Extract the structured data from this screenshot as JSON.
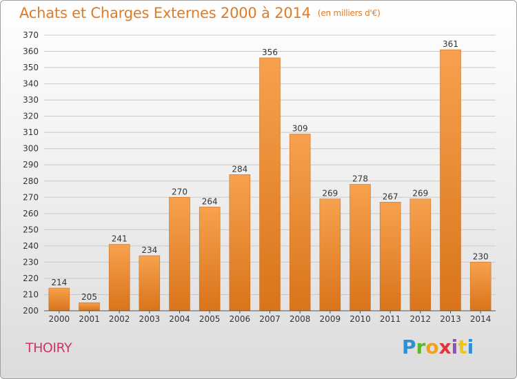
{
  "header": {
    "title": "Achats et Charges Externes 2000 à 2014",
    "unit": "(en milliers d'€)"
  },
  "footer": {
    "town": "THOIRY",
    "logo_text": "Proxiti"
  },
  "colors": {
    "title": "#e07b25",
    "town": "#c8376a",
    "bar_top": "#f7a14e",
    "bar_bottom": "#d9741a",
    "bar_edge": "#c06415",
    "grid": "#c8c8c8"
  },
  "chart_data": {
    "type": "bar",
    "categories": [
      "2000",
      "2001",
      "2002",
      "2003",
      "2004",
      "2005",
      "2006",
      "2007",
      "2008",
      "2009",
      "2010",
      "2011",
      "2012",
      "2013",
      "2014"
    ],
    "values": [
      214,
      205,
      241,
      234,
      270,
      264,
      284,
      356,
      309,
      269,
      278,
      267,
      269,
      361,
      230
    ],
    "ylim": [
      200,
      370
    ],
    "yticks": [
      200,
      210,
      220,
      230,
      240,
      250,
      260,
      270,
      280,
      290,
      300,
      310,
      320,
      330,
      340,
      350,
      360,
      370
    ],
    "grid": true,
    "data_labels": true
  }
}
